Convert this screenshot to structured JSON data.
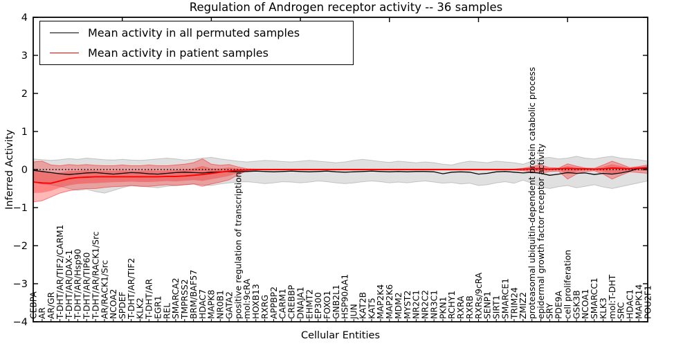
{
  "title": "Regulation of Androgen receptor activity -- 36 samples",
  "axes": {
    "ylabel": "Inferred Activity",
    "xlabel": "Cellular Entities",
    "yticks": [
      4,
      3,
      2,
      1,
      0,
      -1,
      -2,
      -3,
      -4
    ],
    "ylim": [
      -4,
      4
    ]
  },
  "legend": {
    "items": [
      {
        "label": "Mean activity in all permuted samples",
        "color": "#000000"
      },
      {
        "label": "Mean activity in patient samples",
        "color": "#ff0000"
      }
    ]
  },
  "chart_data": {
    "type": "line",
    "title": "Regulation of Androgen receptor activity -- 36 samples",
    "xlabel": "Cellular Entities",
    "ylabel": "Inferred Activity",
    "ylim": [
      -4,
      4
    ],
    "grid": false,
    "legend_position": "upper-left",
    "zero_line": {
      "style": "dotted",
      "color": "#000000"
    },
    "categories": [
      "CEBPA",
      "AR",
      "AR/GR",
      "T-DHT/AR/TIF2/CARM1",
      "T-DHT/AR/DAX-1",
      "T-DHT/AR/Hsp90",
      "T-DHT/AR/TIP60",
      "T-DHT/AR/RACK1/Src",
      "AR/RACK1/Src",
      "NCOA2",
      "SPDEF",
      "T-DHT/AR/TIF2",
      "KLK2",
      "T-DHT/AR",
      "EGR1",
      "REL",
      "SMARCA2",
      "TMPRSS2",
      "BRM/BAF57",
      "HDAC7",
      "MAPK8",
      "NR0B1",
      "GATA2",
      "positive regulation of transcription",
      "mol:9cRA",
      "HOXB13",
      "RXRG",
      "APPBP2",
      "CARM1",
      "CREBBP",
      "DNAJA1",
      "EHMT2",
      "EP300",
      "FOXO1",
      "GNB2L1",
      "HSP90AA1",
      "JUN",
      "KAT2B",
      "KAT5",
      "MAP2K4",
      "MAP2K6",
      "MDM2",
      "MYST2",
      "NR2C1",
      "NR2C2",
      "NR3C1",
      "PKN1",
      "RCHY1",
      "RXRA",
      "RXRB",
      "RXRs/9cRA",
      "SENP1",
      "SIRT1",
      "SMARCE1",
      "TRIM24",
      "ZMIZ2",
      "proteasomal ubiquitin-dependent protein catabolic process",
      "epidermal growth factor receptor activity",
      "SRY",
      "PDE9A",
      "cell proliferation",
      "GSK3B",
      "NCOA1",
      "SMARCC1",
      "KLK3",
      "mol:T-DHT",
      "SRC",
      "HDAC1",
      "MAPK14",
      "POU2F1"
    ],
    "series": [
      {
        "name": "Mean activity in all permuted samples",
        "color": "#000000",
        "values": [
          -0.02,
          -0.05,
          -0.08,
          -0.11,
          -0.13,
          -0.11,
          -0.09,
          -0.08,
          -0.1,
          -0.12,
          -0.1,
          -0.08,
          -0.09,
          -0.11,
          -0.12,
          -0.1,
          -0.08,
          -0.07,
          -0.08,
          -0.09,
          -0.07,
          -0.06,
          -0.05,
          -0.06,
          -0.05,
          -0.04,
          -0.05,
          -0.06,
          -0.05,
          -0.04,
          -0.05,
          -0.06,
          -0.05,
          -0.04,
          -0.06,
          -0.07,
          -0.06,
          -0.05,
          -0.04,
          -0.05,
          -0.06,
          -0.05,
          -0.06,
          -0.05,
          -0.05,
          -0.06,
          -0.11,
          -0.07,
          -0.06,
          -0.07,
          -0.12,
          -0.1,
          -0.06,
          -0.05,
          -0.07,
          -0.09,
          -0.07,
          -0.1,
          -0.15,
          -0.12,
          -0.08,
          -0.1,
          -0.09,
          -0.13,
          -0.1,
          -0.12,
          -0.09,
          -0.04,
          0.03,
          0.03
        ]
      },
      {
        "name": "Mean activity in patient samples",
        "color": "#ff0000",
        "values": [
          -0.33,
          -0.35,
          -0.36,
          -0.3,
          -0.24,
          -0.21,
          -0.2,
          -0.19,
          -0.19,
          -0.19,
          -0.19,
          -0.19,
          -0.19,
          -0.19,
          -0.19,
          -0.18,
          -0.18,
          -0.17,
          -0.15,
          -0.13,
          -0.1,
          -0.07,
          -0.04,
          -0.02,
          -0.01,
          0,
          0,
          0,
          0,
          0,
          0,
          0,
          0,
          0,
          0,
          0,
          0,
          0,
          0,
          0,
          0,
          0,
          0,
          0,
          0,
          0,
          0,
          0,
          0,
          0,
          0,
          0,
          0,
          0,
          0,
          0.01,
          0.02,
          0.02,
          0.01,
          0.02,
          0.03,
          0.02,
          0.02,
          0.01,
          0.02,
          0.04,
          0.03,
          0.02,
          0.04,
          0.05
        ]
      }
    ],
    "bands": [
      {
        "name": "permuted samples range",
        "fill": "rgba(0,0,0,0.12)",
        "edge": "rgba(0,0,0,0.18)",
        "upper": [
          0.28,
          0.26,
          0.24,
          0.26,
          0.29,
          0.27,
          0.3,
          0.28,
          0.26,
          0.25,
          0.27,
          0.25,
          0.24,
          0.26,
          0.28,
          0.3,
          0.28,
          0.25,
          0.27,
          0.3,
          0.32,
          0.28,
          0.25,
          0.22,
          0.2,
          0.22,
          0.24,
          0.23,
          0.21,
          0.2,
          0.22,
          0.24,
          0.22,
          0.2,
          0.18,
          0.2,
          0.24,
          0.27,
          0.24,
          0.21,
          0.19,
          0.22,
          0.2,
          0.18,
          0.2,
          0.18,
          0.14,
          0.12,
          0.18,
          0.22,
          0.2,
          0.18,
          0.22,
          0.2,
          0.18,
          0.14,
          0.22,
          0.3,
          0.32,
          0.28,
          0.3,
          0.35,
          0.3,
          0.28,
          0.32,
          0.35,
          0.3,
          0.28,
          0.26,
          0.22
        ],
        "lower": [
          -0.32,
          -0.38,
          -0.4,
          -0.44,
          -0.5,
          -0.55,
          -0.52,
          -0.58,
          -0.62,
          -0.55,
          -0.48,
          -0.42,
          -0.44,
          -0.46,
          -0.48,
          -0.44,
          -0.42,
          -0.4,
          -0.38,
          -0.4,
          -0.42,
          -0.38,
          -0.35,
          -0.33,
          -0.32,
          -0.34,
          -0.37,
          -0.35,
          -0.32,
          -0.33,
          -0.35,
          -0.33,
          -0.3,
          -0.32,
          -0.35,
          -0.37,
          -0.35,
          -0.32,
          -0.3,
          -0.32,
          -0.35,
          -0.33,
          -0.35,
          -0.32,
          -0.3,
          -0.33,
          -0.36,
          -0.34,
          -0.38,
          -0.36,
          -0.42,
          -0.4,
          -0.35,
          -0.32,
          -0.36,
          -0.28,
          -0.36,
          -0.46,
          -0.5,
          -0.45,
          -0.42,
          -0.48,
          -0.44,
          -0.4,
          -0.46,
          -0.5,
          -0.45,
          -0.4,
          -0.35,
          -0.3
        ]
      },
      {
        "name": "patient samples range",
        "fill": "rgba(255,0,0,0.28)",
        "edge": "rgba(255,0,0,0.45)",
        "upper": [
          0.2,
          0.22,
          0.12,
          0.1,
          0.13,
          0.11,
          0.13,
          0.11,
          0.1,
          0.1,
          0.12,
          0.1,
          0.1,
          0.12,
          0.1,
          0.1,
          0.12,
          0.14,
          0.18,
          0.28,
          0.14,
          0.11,
          0.13,
          0.07,
          0.02,
          0.01,
          0.01,
          0.01,
          0.01,
          0.01,
          0.01,
          0.01,
          0.01,
          0.01,
          0.01,
          0.01,
          0.01,
          0.01,
          0.01,
          0.01,
          0.01,
          0.01,
          0.01,
          0.01,
          0.01,
          0.01,
          0.01,
          0.01,
          0.01,
          0.01,
          0.01,
          0.01,
          0.01,
          0.01,
          0.01,
          0.03,
          0.08,
          0.12,
          0.05,
          0.04,
          0.15,
          0.09,
          0.04,
          0.03,
          0.12,
          0.22,
          0.14,
          0.05,
          0.08,
          0.12
        ],
        "lower": [
          -0.85,
          -0.82,
          -0.72,
          -0.62,
          -0.56,
          -0.52,
          -0.5,
          -0.5,
          -0.47,
          -0.45,
          -0.44,
          -0.42,
          -0.44,
          -0.44,
          -0.42,
          -0.4,
          -0.42,
          -0.4,
          -0.38,
          -0.44,
          -0.38,
          -0.33,
          -0.27,
          -0.14,
          -0.03,
          -0.01,
          -0.01,
          -0.01,
          -0.01,
          -0.01,
          -0.01,
          -0.01,
          -0.01,
          -0.01,
          -0.01,
          -0.01,
          -0.01,
          -0.01,
          -0.01,
          -0.01,
          -0.01,
          -0.01,
          -0.01,
          -0.01,
          -0.01,
          -0.01,
          -0.01,
          -0.01,
          -0.01,
          -0.01,
          -0.01,
          -0.01,
          -0.01,
          -0.01,
          -0.01,
          -0.03,
          -0.07,
          -0.1,
          -0.05,
          -0.04,
          -0.25,
          -0.12,
          -0.05,
          -0.03,
          -0.12,
          -0.25,
          -0.15,
          -0.06,
          -0.08,
          -0.1
        ]
      }
    ]
  }
}
